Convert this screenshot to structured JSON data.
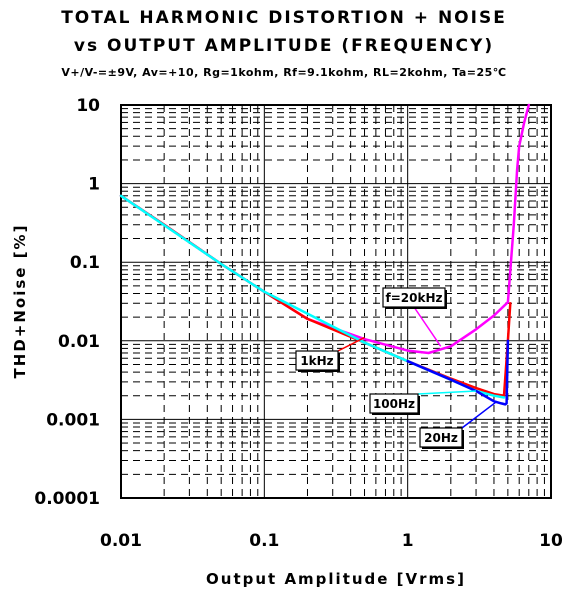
{
  "chart_data": {
    "type": "line",
    "title": "TOTAL HARMONIC DISTORTION + NOISE",
    "subtitle": "vs OUTPUT AMPLITUDE (FREQUENCY)",
    "conditions": "V+/V-=±9V, Av=+10, Rg=1kohm, Rf=9.1kohm, RL=2kohm, Ta=25℃",
    "xlabel": "Output Amplitude [Vrms]",
    "ylabel": "THD+Noise [%]",
    "xscale": "log",
    "yscale": "log",
    "xlim": [
      0.01,
      10
    ],
    "ylim": [
      0.0001,
      10
    ],
    "xticks": [
      "0.01",
      "0.1",
      "1",
      "10"
    ],
    "yticks": [
      "10",
      "1",
      "0.1",
      "0.01",
      "0.001",
      "0.0001"
    ],
    "grid": true,
    "series": [
      {
        "name": "f=20kHz",
        "color": "#ff00ff",
        "x": [
          0.01,
          0.02,
          0.05,
          0.1,
          0.2,
          0.5,
          1.0,
          1.4,
          2.0,
          3.0,
          4.0,
          5.0,
          5.5,
          5.8,
          6.0,
          6.5,
          7.0
        ],
        "y": [
          0.7,
          0.3,
          0.095,
          0.042,
          0.019,
          0.0105,
          0.0075,
          0.007,
          0.0085,
          0.014,
          0.021,
          0.031,
          0.3,
          1.5,
          3.0,
          6.0,
          10.0
        ]
      },
      {
        "name": "1kHz",
        "color": "#ff0000",
        "x": [
          0.01,
          0.02,
          0.05,
          0.1,
          0.2,
          0.5,
          1.0,
          2.0,
          3.0,
          4.0,
          4.7,
          5.0,
          5.2
        ],
        "y": [
          0.7,
          0.3,
          0.095,
          0.042,
          0.019,
          0.0095,
          0.0055,
          0.0033,
          0.0025,
          0.0021,
          0.002,
          0.01,
          0.03
        ]
      },
      {
        "name": "100Hz",
        "color": "#00ffff",
        "x": [
          0.01,
          0.05,
          0.1,
          0.5,
          1.0,
          2.0,
          3.0,
          4.0,
          4.7
        ],
        "y": [
          0.7,
          0.095,
          0.042,
          0.0095,
          0.0055,
          0.0032,
          0.0023,
          0.002,
          0.0019
        ]
      },
      {
        "name": "20Hz",
        "color": "#0000ff",
        "x": [
          1.0,
          2.0,
          3.0,
          4.0,
          4.5,
          4.8,
          4.9,
          5.0
        ],
        "y": [
          0.0055,
          0.0032,
          0.0023,
          0.0017,
          0.0016,
          0.00155,
          0.0016,
          0.01
        ]
      }
    ],
    "annotations": [
      {
        "text": "f=20kHz",
        "series": "f=20kHz"
      },
      {
        "text": "1kHz",
        "series": "1kHz"
      },
      {
        "text": "100Hz",
        "series": "100Hz"
      },
      {
        "text": "20Hz",
        "series": "20Hz"
      }
    ]
  }
}
